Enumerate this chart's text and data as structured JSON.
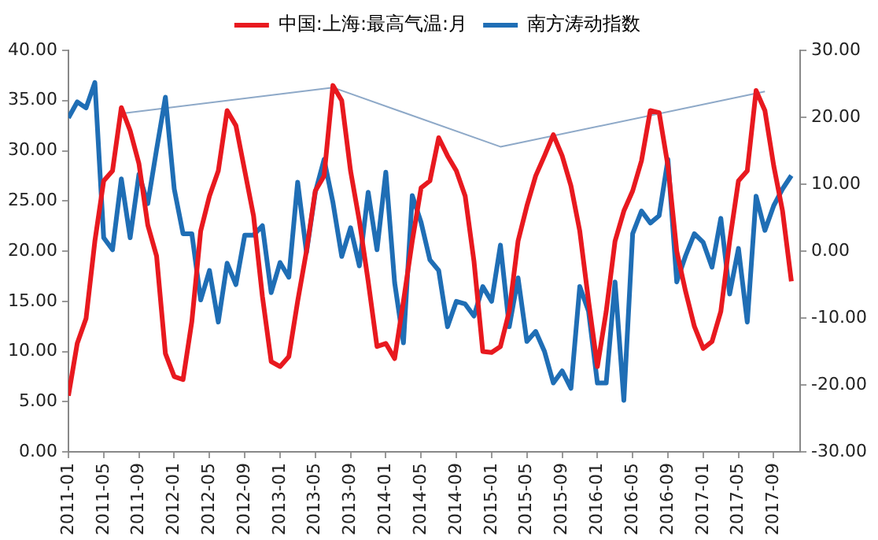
{
  "chart_data": {
    "type": "line",
    "x": [
      "2011-01",
      "2011-02",
      "2011-03",
      "2011-04",
      "2011-05",
      "2011-06",
      "2011-07",
      "2011-08",
      "2011-09",
      "2011-10",
      "2011-11",
      "2011-12",
      "2012-01",
      "2012-02",
      "2012-03",
      "2012-04",
      "2012-05",
      "2012-06",
      "2012-07",
      "2012-08",
      "2012-09",
      "2012-10",
      "2012-11",
      "2012-12",
      "2013-01",
      "2013-02",
      "2013-03",
      "2013-04",
      "2013-05",
      "2013-06",
      "2013-07",
      "2013-08",
      "2013-09",
      "2013-10",
      "2013-11",
      "2013-12",
      "2014-01",
      "2014-02",
      "2014-03",
      "2014-04",
      "2014-05",
      "2014-06",
      "2014-07",
      "2014-08",
      "2014-09",
      "2014-10",
      "2014-11",
      "2014-12",
      "2015-01",
      "2015-02",
      "2015-03",
      "2015-04",
      "2015-05",
      "2015-06",
      "2015-07",
      "2015-08",
      "2015-09",
      "2015-10",
      "2015-11",
      "2015-12",
      "2016-01",
      "2016-02",
      "2016-03",
      "2016-04",
      "2016-05",
      "2016-06",
      "2016-07",
      "2016-08",
      "2016-09",
      "2016-10",
      "2016-11",
      "2016-12",
      "2017-01",
      "2017-02",
      "2017-03",
      "2017-04",
      "2017-05",
      "2017-06",
      "2017-07",
      "2017-08",
      "2017-09",
      "2017-10",
      "2017-11"
    ],
    "series": [
      {
        "name": "中国:上海:最高气温:月",
        "color": "#e8191f",
        "values": [
          5.6,
          10.8,
          13.3,
          21,
          27,
          28,
          34.3,
          32,
          28.7,
          22.6,
          19.5,
          9.8,
          7.5,
          7.2,
          13,
          22,
          25.5,
          28,
          34,
          32.5,
          28,
          23.5,
          15.5,
          9,
          8.5,
          9.5,
          15,
          20,
          26,
          27.5,
          36.5,
          35,
          28,
          23,
          17,
          10.5,
          10.8,
          9.3,
          15,
          21,
          26.3,
          27,
          31.3,
          29.5,
          28,
          25.5,
          19,
          10,
          9.9,
          10.5,
          14,
          21,
          24.5,
          27.5,
          29.5,
          31.6,
          29.5,
          26.5,
          22,
          15,
          8.5,
          14,
          21,
          24,
          26,
          29,
          34,
          33.8,
          28.5,
          20,
          16,
          12.5,
          10.3,
          11,
          14,
          21,
          27,
          28,
          36,
          34,
          28.5,
          24,
          17
        ]
      },
      {
        "name": "南方涛动指数",
        "color": "#1f6eb5",
        "axis": "y2",
        "values": [
          19.9,
          22.3,
          21.4,
          25.2,
          2,
          0.2,
          10.8,
          2,
          11.5,
          7.1,
          15.2,
          23,
          9.3,
          2.6,
          2.6,
          -7.3,
          -2.9,
          -10.6,
          -1.8,
          -5,
          2.4,
          2.4,
          3.8,
          -6.2,
          -1.7,
          -3.9,
          10.3,
          -0.2,
          8.8,
          13.7,
          7.3,
          -0.8,
          3.5,
          -2.2,
          8.8,
          0.2,
          11.8,
          -4.7,
          -13.7,
          8.3,
          4.3,
          -1.3,
          -2.9,
          -11.3,
          -7.5,
          -7.9,
          -9.7,
          -5.3,
          -7.5,
          0.9,
          -11.3,
          -4,
          -13.5,
          -12,
          -15,
          -19.7,
          -17.9,
          -20.5,
          -5.3,
          -9,
          -19.7,
          -19.7,
          -4.6,
          -22.3,
          2.6,
          6,
          4.2,
          5.3,
          13.7,
          -4.6,
          -0.7,
          2.6,
          1.3,
          -2.4,
          4.9,
          -6.4,
          0.4,
          -10.6,
          8.2,
          3.1,
          6.8,
          9.3,
          11.3
        ]
      },
      {
        "type": "line",
        "color": "#8ea9c8",
        "x": [
          "2011-07",
          "2013-07",
          "2015-02",
          "2017-08"
        ],
        "values": [
          33.7,
          36.3,
          30.4,
          35.9
        ]
      }
    ],
    "xlim": [
      "2011-01",
      "2017-12"
    ],
    "xticks": [
      "2011-01",
      "2011-05",
      "2011-09",
      "2012-01",
      "2012-05",
      "2012-09",
      "2013-01",
      "2013-05",
      "2013-09",
      "2014-01",
      "2014-05",
      "2014-09",
      "2015-01",
      "2015-05",
      "2015-09",
      "2016-01",
      "2016-05",
      "2016-09",
      "2017-01",
      "2017-05",
      "2017-09"
    ],
    "ylim": [
      0,
      40
    ],
    "yticks": [
      {
        "value": 0,
        "label": "0.00"
      },
      {
        "value": 5,
        "label": "5.00"
      },
      {
        "value": 10,
        "label": "10.00"
      },
      {
        "value": 15,
        "label": "15.00"
      },
      {
        "value": 20,
        "label": "20.00"
      },
      {
        "value": 25,
        "label": "25.00"
      },
      {
        "value": 30,
        "label": "30.00"
      },
      {
        "value": 35,
        "label": "35.00"
      },
      {
        "value": 40,
        "label": "40.00"
      }
    ],
    "y2lim": [
      -30,
      30
    ],
    "y2ticks": [
      {
        "value": -30,
        "label": "-30.00"
      },
      {
        "value": -20,
        "label": "-20.00"
      },
      {
        "value": -10,
        "label": "-10.00"
      },
      {
        "value": 0,
        "label": "0.00"
      },
      {
        "value": 10,
        "label": "10.00"
      },
      {
        "value": 20,
        "label": "20.00"
      },
      {
        "value": 30,
        "label": "30.00"
      }
    ],
    "grid": false,
    "legend": "top",
    "marker": "none"
  }
}
